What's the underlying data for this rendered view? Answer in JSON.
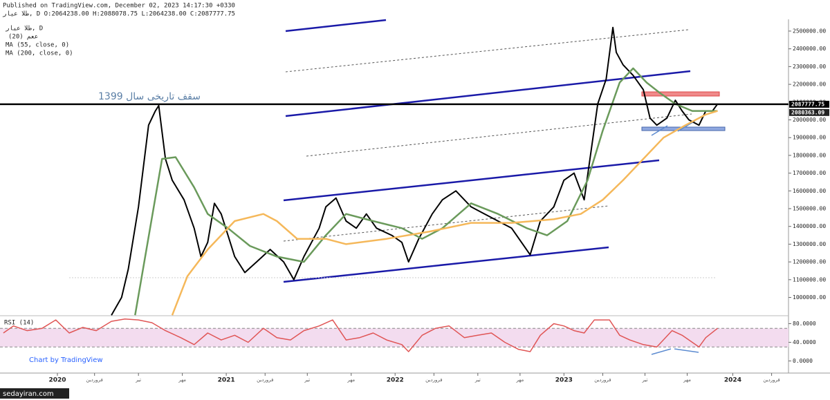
{
  "header": {
    "published": "Published on TradingView.com, December 02, 2023 14:17:30 +0330",
    "ohlc": "طلا عیار, D  O:2064238.00 H:2088078.75 L:2064238.00 C:2087777.75",
    "indicator": "(20) ععم",
    "watermark": "Chart by TradingView",
    "source": "sedayiran.com"
  },
  "chart_data": [
    {
      "type": "line",
      "title": "سقف تاریخی سال 1399",
      "xlim": [
        2019.66,
        2024.33
      ],
      "ylim": [
        897000,
        2566000
      ],
      "yticks": [
        {
          "value": 1000000,
          "label": "1000000.00"
        },
        {
          "value": 1100000,
          "label": "1100000.00"
        },
        {
          "value": 1200000,
          "label": "1200000.00"
        },
        {
          "value": 1300000,
          "label": "1300000.00"
        },
        {
          "value": 1400000,
          "label": "1400000.00"
        },
        {
          "value": 1500000,
          "label": "1500000.00"
        },
        {
          "value": 1600000,
          "label": "1600000.00"
        },
        {
          "value": 1700000,
          "label": "1700000.00"
        },
        {
          "value": 1800000,
          "label": "1800000.00"
        },
        {
          "value": 1900000,
          "label": "1900000.00"
        },
        {
          "value": 2000000,
          "label": "2000000.00"
        },
        {
          "value": 2100000,
          "label": "2100000.00"
        },
        {
          "value": 2200000,
          "label": "2200000.00"
        },
        {
          "value": 2300000,
          "label": "2300000.00"
        },
        {
          "value": 2400000,
          "label": "2400000.00"
        },
        {
          "value": 2500000,
          "label": "2500000.00"
        }
      ],
      "last_values": [
        {
          "value": 2087777.75,
          "label": "2087777.75",
          "color": "#000000"
        },
        {
          "value": 2080363.09,
          "label": "2080363.09",
          "color": "#222222"
        }
      ],
      "series": [
        {
          "name": "طلا عیار, D",
          "color": "#000000",
          "width": 2,
          "x": [
            2020.32,
            2020.38,
            2020.42,
            2020.48,
            2020.54,
            2020.58,
            2020.6,
            2020.64,
            2020.68,
            2020.75,
            2020.81,
            2020.85,
            2020.89,
            2020.93,
            2020.97,
            2021.01,
            2021.05,
            2021.11,
            2021.18,
            2021.26,
            2021.34,
            2021.4,
            2021.46,
            2021.55,
            2021.59,
            2021.65,
            2021.71,
            2021.77,
            2021.83,
            2021.89,
            2021.98,
            2022.04,
            2022.08,
            2022.14,
            2022.22,
            2022.28,
            2022.36,
            2022.45,
            2022.53,
            2022.61,
            2022.69,
            2022.8,
            2022.86,
            2022.94,
            2023.0,
            2023.06,
            2023.12,
            2023.16,
            2023.2,
            2023.25,
            2023.29,
            2023.31,
            2023.35,
            2023.41,
            2023.47,
            2023.51,
            2023.55,
            2023.61,
            2023.66,
            2023.7,
            2023.74,
            2023.8,
            2023.84,
            2023.88,
            2023.91
          ],
          "values": [
            900000,
            1000000,
            1160000,
            1510000,
            1970000,
            2050000,
            2080000,
            1780000,
            1660000,
            1550000,
            1390000,
            1230000,
            1310000,
            1530000,
            1470000,
            1350000,
            1230000,
            1140000,
            1200000,
            1270000,
            1200000,
            1100000,
            1230000,
            1390000,
            1510000,
            1560000,
            1430000,
            1390000,
            1470000,
            1390000,
            1350000,
            1310000,
            1200000,
            1330000,
            1470000,
            1550000,
            1600000,
            1510000,
            1470000,
            1430000,
            1390000,
            1240000,
            1430000,
            1510000,
            1660000,
            1700000,
            1550000,
            1820000,
            2090000,
            2230000,
            2520000,
            2380000,
            2310000,
            2250000,
            2170000,
            2010000,
            1970000,
            2010000,
            2110000,
            2050000,
            2000000,
            1970000,
            2050000,
            2050000,
            2090000
          ]
        },
        {
          "name": "MA (55, close, 0)",
          "color": "#6a9a5b",
          "width": 2.5,
          "x": [
            2020.46,
            2020.62,
            2020.7,
            2020.81,
            2020.89,
            2021.01,
            2021.14,
            2021.3,
            2021.46,
            2021.59,
            2021.71,
            2021.87,
            2022.04,
            2022.16,
            2022.28,
            2022.45,
            2022.61,
            2022.78,
            2022.9,
            2023.02,
            2023.14,
            2023.23,
            2023.33,
            2023.41,
            2023.49,
            2023.57,
            2023.66,
            2023.76,
            2023.91
          ],
          "values": [
            900000,
            1780000,
            1790000,
            1620000,
            1470000,
            1390000,
            1290000,
            1230000,
            1200000,
            1350000,
            1470000,
            1430000,
            1390000,
            1330000,
            1390000,
            1530000,
            1470000,
            1390000,
            1350000,
            1430000,
            1660000,
            1940000,
            2210000,
            2290000,
            2210000,
            2150000,
            2090000,
            2050000,
            2050000
          ]
        },
        {
          "name": "MA (200, close, 0)",
          "color": "#f5b85a",
          "width": 2.5,
          "x": [
            2020.68,
            2020.77,
            2020.89,
            2021.05,
            2021.22,
            2021.3,
            2021.42,
            2021.59,
            2021.71,
            2021.95,
            2022.2,
            2022.45,
            2022.69,
            2022.94,
            2023.1,
            2023.23,
            2023.35,
            2023.47,
            2023.59,
            2023.72,
            2023.84,
            2023.91
          ],
          "values": [
            900000,
            1120000,
            1270000,
            1430000,
            1470000,
            1430000,
            1330000,
            1330000,
            1300000,
            1330000,
            1370000,
            1420000,
            1420000,
            1440000,
            1470000,
            1550000,
            1660000,
            1780000,
            1900000,
            1970000,
            2030000,
            2050000
          ]
        }
      ]
    },
    {
      "type": "line",
      "title": "RSI (14)",
      "xlim": [
        2019.66,
        2024.33
      ],
      "ylim": [
        -26,
        97
      ],
      "yticks": [
        {
          "value": 0,
          "label": "0.0000"
        },
        {
          "value": 40,
          "label": "40.0000"
        },
        {
          "value": 80,
          "label": "80.0000"
        }
      ],
      "bands": [
        30,
        70
      ],
      "xticks": [
        {
          "value": 2020,
          "label": "2020"
        },
        {
          "value": 2020.22,
          "label": "فروردین"
        },
        {
          "value": 2020.48,
          "label": "تیر"
        },
        {
          "value": 2020.74,
          "label": "مهر"
        },
        {
          "value": 2021,
          "label": "2021"
        },
        {
          "value": 2021.23,
          "label": "فروردین"
        },
        {
          "value": 2021.48,
          "label": "تیر"
        },
        {
          "value": 2021.74,
          "label": "مهر"
        },
        {
          "value": 2022,
          "label": "2022"
        },
        {
          "value": 2022.23,
          "label": "فروردین"
        },
        {
          "value": 2022.49,
          "label": "تیر"
        },
        {
          "value": 2022.74,
          "label": "مهر"
        },
        {
          "value": 2023,
          "label": "2023"
        },
        {
          "value": 2023.23,
          "label": "فروردین"
        },
        {
          "value": 2023.48,
          "label": "تیر"
        },
        {
          "value": 2023.73,
          "label": "مهر"
        },
        {
          "value": 2024,
          "label": "2024"
        },
        {
          "value": 2024.23,
          "label": "فروردین"
        }
      ],
      "series": [
        {
          "name": "RSI (14)",
          "color": "#e05555",
          "width": 1.5,
          "x": [
            2019.68,
            2019.74,
            2019.82,
            2019.91,
            2019.99,
            2020.07,
            2020.15,
            2020.23,
            2020.32,
            2020.4,
            2020.48,
            2020.56,
            2020.64,
            2020.73,
            2020.81,
            2020.89,
            2020.97,
            2021.05,
            2021.13,
            2021.22,
            2021.3,
            2021.38,
            2021.46,
            2021.55,
            2021.63,
            2021.71,
            2021.79,
            2021.87,
            2021.95,
            2022.04,
            2022.08,
            2022.16,
            2022.24,
            2022.32,
            2022.41,
            2022.49,
            2022.57,
            2022.65,
            2022.73,
            2022.8,
            2022.86,
            2022.94,
            2023.0,
            2023.06,
            2023.12,
            2023.18,
            2023.27,
            2023.33,
            2023.39,
            2023.47,
            2023.55,
            2023.64,
            2023.7,
            2023.76,
            2023.8,
            2023.84,
            2023.91
          ],
          "values": [
            60,
            75,
            65,
            70,
            88,
            60,
            72,
            65,
            85,
            90,
            88,
            82,
            65,
            50,
            35,
            60,
            45,
            55,
            40,
            70,
            50,
            45,
            65,
            75,
            88,
            45,
            50,
            60,
            45,
            35,
            20,
            55,
            70,
            75,
            50,
            55,
            60,
            40,
            25,
            20,
            55,
            80,
            75,
            65,
            60,
            88,
            88,
            55,
            45,
            35,
            30,
            65,
            55,
            40,
            30,
            50,
            70
          ]
        }
      ]
    }
  ]
}
